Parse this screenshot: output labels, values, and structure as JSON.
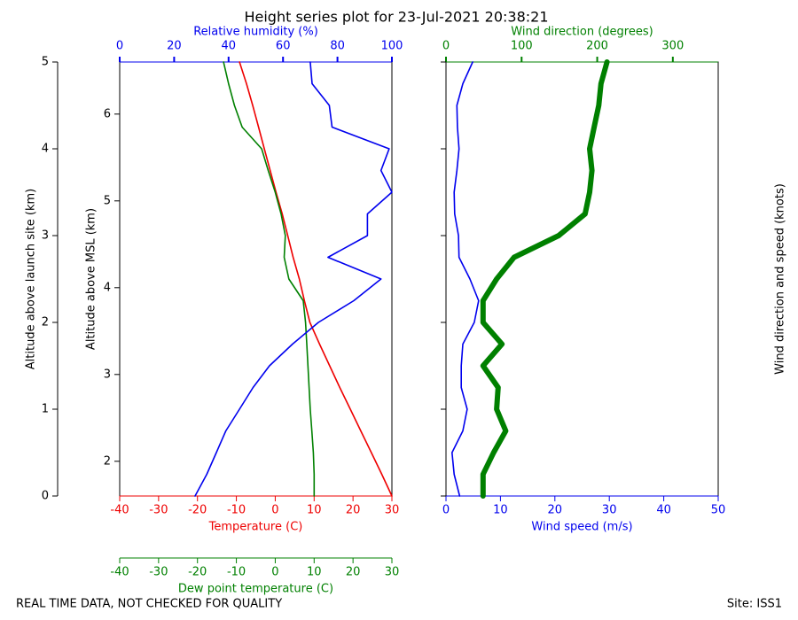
{
  "title": "Height series plot for 23-Jul-2021 20:38:21",
  "footer": {
    "note": "REAL TIME DATA, NOT CHECKED FOR QUALITY",
    "site": "Site: ISS1"
  },
  "chart_data": [
    {
      "type": "line",
      "ylabel": "Altitude above launch site (km)",
      "ylim": [
        0,
        5
      ],
      "yticks": [
        0,
        1,
        2,
        3,
        4,
        5
      ],
      "y2label": "Altitude above MSL (km)",
      "y2lim": [
        1.6,
        6.6
      ],
      "y2ticks": [
        2,
        3,
        4,
        5,
        6
      ],
      "xlabel": "Temperature (C)",
      "xlim": [
        -40,
        30
      ],
      "xticks": [
        -40,
        -30,
        -20,
        -10,
        0,
        10,
        20,
        30
      ],
      "x2label": "Relative humidity (%)",
      "x2lim": [
        0,
        100
      ],
      "x2ticks": [
        0,
        20,
        40,
        60,
        80,
        100
      ],
      "x3label": "Dew point temperature (C)",
      "x3lim": [
        -40,
        30
      ],
      "x3ticks": [
        -40,
        -30,
        -20,
        -10,
        0,
        10,
        20,
        30
      ],
      "y": [
        0,
        0.25,
        0.5,
        0.75,
        1,
        1.25,
        1.5,
        1.75,
        2,
        2.25,
        2.5,
        2.75,
        3,
        3.25,
        3.5,
        3.75,
        4,
        4.25,
        4.5,
        4.75,
        5
      ],
      "series": [
        {
          "axis": "x",
          "color": "#ee0000",
          "values": [
            30,
            27.4,
            24.7,
            22,
            19.3,
            16.6,
            14,
            11.4,
            8.9,
            7.5,
            6.2,
            4.6,
            3.2,
            1.8,
            0.2,
            -1.3,
            -2.8,
            -4.3,
            -5.8,
            -7.4,
            -9.2
          ]
        },
        {
          "axis": "x3",
          "color": "#008000",
          "values": [
            10,
            10,
            9.8,
            9.4,
            9,
            8.7,
            8.4,
            8.1,
            7.8,
            7.2,
            3.5,
            2.3,
            2.6,
            1.5,
            0,
            -1.8,
            -3.5,
            -8.5,
            -10.5,
            -12,
            -13.3
          ]
        },
        {
          "axis": "x2",
          "color": "#0000ee",
          "values": [
            27.7,
            32,
            35.5,
            39,
            44,
            49,
            55,
            63.5,
            73,
            86,
            96,
            76.5,
            91,
            91,
            100,
            96,
            99,
            78,
            77,
            70.7,
            70
          ]
        }
      ]
    },
    {
      "type": "line",
      "ylim": [
        0,
        5
      ],
      "yticks": [
        0,
        1,
        2,
        3,
        4,
        5
      ],
      "y2label": "Wind direction and speed (knots)",
      "xlabel": "Wind speed (m/s)",
      "xlim": [
        0,
        50
      ],
      "xticks": [
        0,
        10,
        20,
        30,
        40,
        50
      ],
      "x2label": "Wind direction (degrees)",
      "x2lim": [
        0,
        360
      ],
      "x2ticks": [
        0,
        100,
        200,
        300
      ],
      "y": [
        0,
        0.25,
        0.5,
        0.75,
        1,
        1.25,
        1.5,
        1.75,
        2,
        2.25,
        2.5,
        2.75,
        3,
        3.25,
        3.5,
        3.75,
        4,
        4.25,
        4.5,
        4.75,
        5
      ],
      "series": [
        {
          "axis": "x",
          "color": "#0000ee",
          "values": [
            2.5,
            1.5,
            1.1,
            3.1,
            3.9,
            2.8,
            2.8,
            3.1,
            5.2,
            6,
            4.4,
            2.4,
            2.3,
            1.6,
            1.5,
            2,
            2.4,
            2.1,
            2,
            3.1,
            4.9
          ]
        },
        {
          "axis": "x2",
          "color": "#008000",
          "width": 6,
          "values": [
            49,
            49,
            63,
            79,
            67,
            69,
            49,
            74,
            49,
            49,
            67,
            90,
            149,
            184,
            190,
            193,
            190,
            196,
            202,
            205,
            213
          ]
        }
      ]
    }
  ]
}
